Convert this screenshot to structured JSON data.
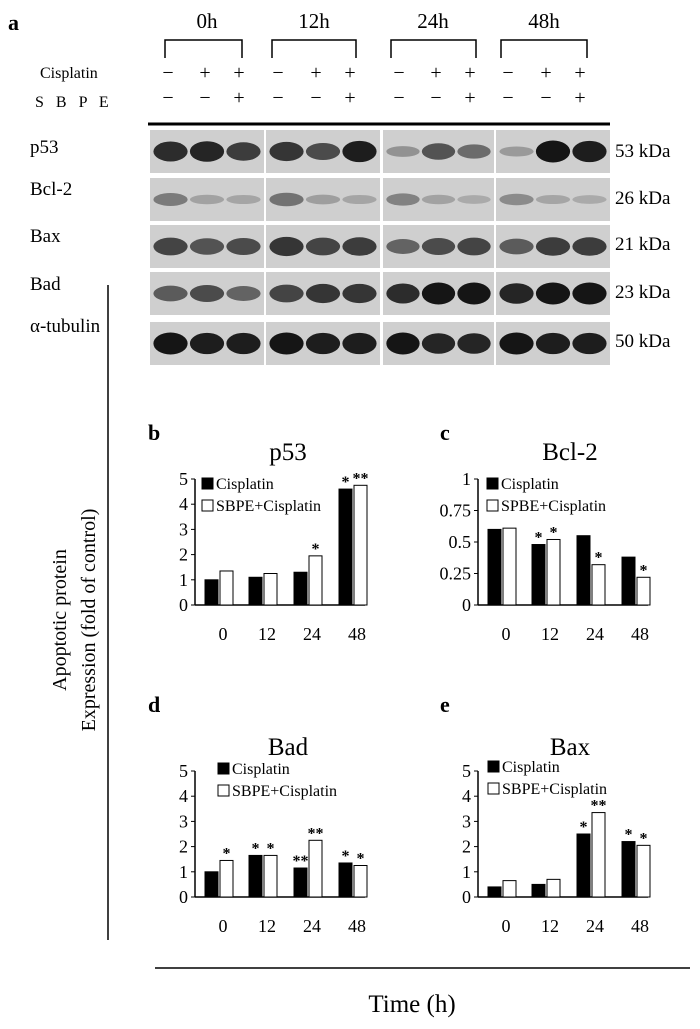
{
  "panel_a": {
    "letter": "a",
    "timepoints": [
      "0h",
      "12h",
      "24h",
      "48h"
    ],
    "treatments": [
      {
        "label": "Cisplatin",
        "signs": [
          [
            "−",
            "+",
            "+"
          ],
          [
            "−",
            "+",
            "+"
          ],
          [
            "−",
            "+",
            "+"
          ],
          [
            "−",
            "+",
            "+"
          ]
        ]
      },
      {
        "label": "S B P E",
        "signs": [
          [
            "−",
            "−",
            "+"
          ],
          [
            "−",
            "−",
            "+"
          ],
          [
            "−",
            "−",
            "+"
          ],
          [
            "−",
            "−",
            "+"
          ]
        ]
      }
    ],
    "blots": [
      {
        "protein": "p53",
        "size": "53 kDa",
        "intensity": [
          [
            0.85,
            0.9,
            0.75
          ],
          [
            0.8,
            0.65,
            0.95
          ],
          [
            0.2,
            0.6,
            0.45
          ],
          [
            0.15,
            1.0,
            0.95
          ]
        ]
      },
      {
        "protein": "Bcl-2",
        "size": "26 kDa",
        "intensity": [
          [
            0.35,
            0.1,
            0.08
          ],
          [
            0.4,
            0.12,
            0.08
          ],
          [
            0.3,
            0.1,
            0.05
          ],
          [
            0.25,
            0.08,
            0.05
          ]
        ]
      },
      {
        "protein": "Bax",
        "size": "21 kDa",
        "intensity": [
          [
            0.7,
            0.6,
            0.65
          ],
          [
            0.8,
            0.7,
            0.75
          ],
          [
            0.5,
            0.65,
            0.7
          ],
          [
            0.55,
            0.75,
            0.75
          ]
        ]
      },
      {
        "protein": "Bad",
        "size": "23 kDa",
        "intensity": [
          [
            0.55,
            0.65,
            0.5
          ],
          [
            0.7,
            0.8,
            0.8
          ],
          [
            0.85,
            1.0,
            1.0
          ],
          [
            0.9,
            1.0,
            1.0
          ]
        ]
      },
      {
        "protein": "α-tubulin",
        "size": "50 kDa",
        "intensity": [
          [
            1.0,
            0.95,
            0.95
          ],
          [
            1.0,
            0.95,
            0.95
          ],
          [
            1.0,
            0.9,
            0.9
          ],
          [
            1.0,
            0.95,
            0.95
          ]
        ]
      }
    ]
  },
  "shared": {
    "ylabel_line1": "Apoptotic protein",
    "ylabel_line2": "Expression (fold of control)",
    "xlabel": "Time (h)"
  },
  "chart_data": [
    {
      "letter": "b",
      "type": "bar",
      "title": "p53",
      "categories": [
        "0",
        "12",
        "24",
        "48"
      ],
      "ylim": [
        0,
        5
      ],
      "yticks": [
        "0",
        "1",
        "2",
        "3",
        "4",
        "5"
      ],
      "legend": "top-left",
      "series": [
        {
          "name": "Cisplatin",
          "color": "#000000",
          "values": [
            1.0,
            1.1,
            1.3,
            4.6
          ],
          "marks": [
            "",
            "",
            "",
            "*"
          ]
        },
        {
          "name": "SBPE+Cisplatin",
          "color": "#ffffff",
          "values": [
            1.35,
            1.25,
            1.95,
            4.75
          ],
          "marks": [
            "",
            "",
            "*",
            "**"
          ]
        }
      ]
    },
    {
      "letter": "c",
      "type": "bar",
      "title": "Bcl-2",
      "categories": [
        "0",
        "12",
        "24",
        "48"
      ],
      "ylim": [
        0,
        1
      ],
      "yticks": [
        "0",
        "0.25",
        "0.5",
        "0.75",
        "1"
      ],
      "legend": "top-left",
      "series": [
        {
          "name": "Cisplatin",
          "color": "#000000",
          "values": [
            0.6,
            0.48,
            0.55,
            0.38
          ],
          "marks": [
            "",
            "*",
            "",
            ""
          ]
        },
        {
          "name": "SPBE+Cisplatin",
          "color": "#ffffff",
          "values": [
            0.61,
            0.52,
            0.32,
            0.22
          ],
          "marks": [
            "",
            "*",
            "*",
            "*"
          ]
        }
      ]
    },
    {
      "letter": "d",
      "type": "bar",
      "title": "Bad",
      "categories": [
        "0",
        "12",
        "24",
        "48"
      ],
      "ylim": [
        0,
        5
      ],
      "yticks": [
        "0",
        "1",
        "2",
        "3",
        "4",
        "5"
      ],
      "legend": "top-left",
      "series": [
        {
          "name": "Cisplatin",
          "color": "#000000",
          "values": [
            1.0,
            1.65,
            1.15,
            1.35
          ],
          "marks": [
            "",
            "*",
            "**",
            "*"
          ]
        },
        {
          "name": "SBPE+Cisplatin",
          "color": "#ffffff",
          "values": [
            1.45,
            1.65,
            2.25,
            1.25
          ],
          "marks": [
            "*",
            "*",
            "**",
            "*"
          ]
        }
      ]
    },
    {
      "letter": "e",
      "type": "bar",
      "title": "Bax",
      "categories": [
        "0",
        "12",
        "24",
        "48"
      ],
      "ylim": [
        0,
        5
      ],
      "yticks": [
        "0",
        "1",
        "2",
        "3",
        "4",
        "5"
      ],
      "legend": "top-left",
      "series": [
        {
          "name": "Cisplatin",
          "color": "#000000",
          "values": [
            0.4,
            0.5,
            2.5,
            2.2
          ],
          "marks": [
            "",
            "",
            "*",
            "*"
          ]
        },
        {
          "name": "SBPE+Cisplatin",
          "color": "#ffffff",
          "values": [
            0.65,
            0.7,
            3.35,
            2.05
          ],
          "marks": [
            "",
            "",
            "**",
            "*"
          ]
        }
      ]
    }
  ]
}
